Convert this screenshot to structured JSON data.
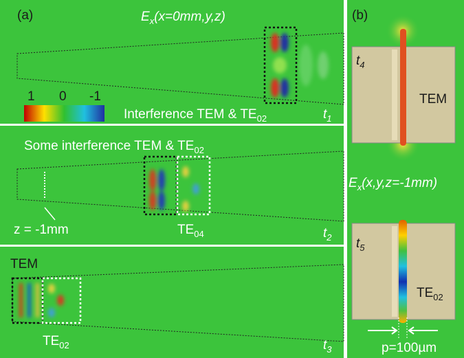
{
  "panel_a": {
    "label": "(a)",
    "field_label": {
      "symbol": "E",
      "sub": "x",
      "args": "(x=0mm,y,z)"
    },
    "colorbar": {
      "labels": [
        "1",
        "0",
        "-1"
      ]
    },
    "rows": [
      {
        "caption": {
          "text": "Interference TEM & TE",
          "sub": "02"
        },
        "time": {
          "symbol": "t",
          "sub": "1"
        }
      },
      {
        "caption": {
          "text": "Some interference TEM & TE",
          "sub": "02"
        },
        "position": "z = -1mm",
        "mode": {
          "text": "TE",
          "sub": "04"
        },
        "time": {
          "symbol": "t",
          "sub": "2"
        }
      },
      {
        "mode_top": "TEM",
        "mode": {
          "text": "TE",
          "sub": "02"
        },
        "time": {
          "symbol": "t",
          "sub": "3"
        }
      }
    ]
  },
  "panel_b": {
    "label": "(b)",
    "top": {
      "time": {
        "symbol": "t",
        "sub": "4"
      },
      "mode": "TEM"
    },
    "field_label": {
      "symbol": "E",
      "sub": "x",
      "args": "(x,y,z=-1mm)"
    },
    "bottom": {
      "time": {
        "symbol": "t",
        "sub": "5"
      },
      "mode": {
        "text": "TE",
        "sub": "02"
      }
    },
    "gap_label": "p=100µm"
  }
}
